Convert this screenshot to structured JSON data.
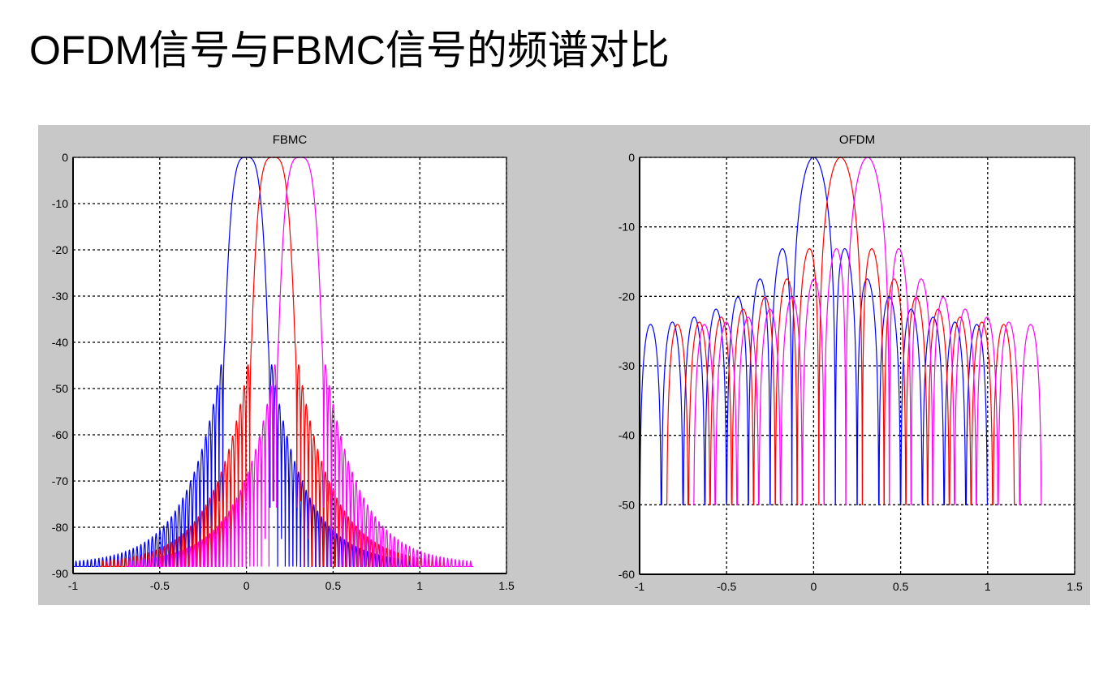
{
  "slide": {
    "title": "OFDM信号与FBMC信号的频谱对比"
  },
  "chart_data": [
    {
      "type": "line",
      "title": "FBMC",
      "xlabel": "",
      "ylabel": "",
      "xlim": [
        -1,
        1.5
      ],
      "ylim": [
        -90,
        0
      ],
      "xticks": [
        "-1",
        "-0.5",
        "0",
        "0.5",
        "1",
        "1.5"
      ],
      "yticks": [
        "0",
        "-10",
        "-20",
        "-30",
        "-40",
        "-50",
        "-60",
        "-70",
        "-80",
        "-90"
      ],
      "xtick_values": [
        -1,
        -0.5,
        0,
        0.5,
        1,
        1.5
      ],
      "ytick_values": [
        0,
        -10,
        -20,
        -30,
        -40,
        -50,
        -60,
        -70,
        -80,
        -90
      ],
      "grid": true,
      "floor_db": -88.5,
      "first_sidelobe_db": -40,
      "series": [
        {
          "color": "#0000ff",
          "peak_x": 0,
          "x_range": [
            -1,
            1
          ]
        },
        {
          "color": "#ff0000",
          "peak_x": 0.155,
          "x_range": [
            -0.845,
            1.155
          ]
        },
        {
          "color": "#ff00ff",
          "peak_x": 0.31,
          "x_range": [
            -0.69,
            1.31
          ]
        }
      ]
    },
    {
      "type": "line",
      "title": "OFDM",
      "xlabel": "",
      "ylabel": "",
      "xlim": [
        -1,
        1.5
      ],
      "ylim": [
        -60,
        0
      ],
      "xticks": [
        "-1",
        "-0.5",
        "0",
        "0.5",
        "1",
        "1.5"
      ],
      "yticks": [
        "0",
        "-10",
        "-20",
        "-30",
        "-40",
        "-50",
        "-60"
      ],
      "xtick_values": [
        -1,
        -0.5,
        0,
        0.5,
        1,
        1.5
      ],
      "ytick_values": [
        0,
        -10,
        -20,
        -30,
        -40,
        -50,
        -60
      ],
      "grid": true,
      "floor_db": -50,
      "first_sidelobe_db": -13,
      "far_sidelobe_db": -24,
      "series": [
        {
          "color": "#0000ff",
          "peak_x": 0,
          "x_range": [
            -1,
            1
          ]
        },
        {
          "color": "#ff0000",
          "peak_x": 0.155,
          "x_range": [
            -0.845,
            1.155
          ]
        },
        {
          "color": "#ff00ff",
          "peak_x": 0.31,
          "x_range": [
            -0.69,
            1.31
          ]
        }
      ]
    }
  ]
}
